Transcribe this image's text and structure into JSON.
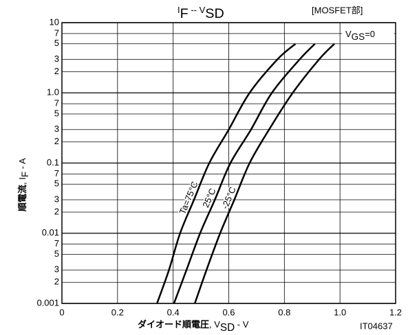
{
  "chart_data": {
    "type": "line",
    "title": [
      {
        "text": "I"
      },
      {
        "text": "F",
        "sub": true
      },
      {
        "text": " -- V"
      },
      {
        "text": "SD",
        "sub": true
      }
    ],
    "tag": "[MOSFET部]",
    "condition": [
      {
        "text": "V"
      },
      {
        "text": "GS",
        "sub": true
      },
      {
        "text": "=0"
      }
    ],
    "xlabel": [
      {
        "text": "ダイオード順電圧",
        "bold": true
      },
      {
        "text": ", V"
      },
      {
        "text": "SD",
        "sub": true
      },
      {
        "text": " - V"
      }
    ],
    "ylabel": [
      {
        "text": "順電流",
        "bold": true
      },
      {
        "text": ", I"
      },
      {
        "text": "F",
        "sub": true
      },
      {
        "text": " - A"
      }
    ],
    "figure_id": "IT04637",
    "xlim": [
      0,
      1.2
    ],
    "xticks": [
      0,
      0.2,
      0.4,
      0.6,
      0.8,
      {
        "value": 1,
        "label": "1.0"
      },
      1.2
    ],
    "ylim": [
      0.001,
      10
    ],
    "ylog": true,
    "yticks": [
      0.001,
      {
        "value": 0.002,
        "label": "2"
      },
      {
        "value": 0.003,
        "label": "3"
      },
      {
        "value": 0.005,
        "label": "5"
      },
      {
        "value": 0.007,
        "label": "7"
      },
      0.01,
      {
        "value": 0.02,
        "label": "2"
      },
      {
        "value": 0.03,
        "label": "3"
      },
      {
        "value": 0.05,
        "label": "5"
      },
      {
        "value": 0.07,
        "label": "7"
      },
      0.1,
      {
        "value": 0.2,
        "label": "2"
      },
      {
        "value": 0.3,
        "label": "3"
      },
      {
        "value": 0.5,
        "label": "5"
      },
      {
        "value": 0.7,
        "label": "7"
      },
      {
        "value": 1,
        "label": "1.0"
      },
      2,
      3,
      5,
      7,
      10
    ],
    "grid": true,
    "series": [
      {
        "name": "Ta=75°C",
        "color": "#000000",
        "x": [
          0.342,
          0.385,
          0.425,
          0.475,
          0.53,
          0.6,
          0.675,
          0.775,
          0.84
        ],
        "values": [
          0.001,
          0.003,
          0.01,
          0.03,
          0.1,
          0.3,
          1,
          3,
          5
        ]
      },
      {
        "name": "25°C",
        "color": "#000000",
        "x": [
          0.403,
          0.448,
          0.497,
          0.55,
          0.606,
          0.68,
          0.755,
          0.855,
          0.91
        ],
        "values": [
          0.001,
          0.003,
          0.01,
          0.03,
          0.1,
          0.3,
          1,
          3,
          5
        ]
      },
      {
        "name": "-25°C",
        "color": "#000000",
        "x": [
          0.478,
          0.52,
          0.569,
          0.62,
          0.675,
          0.745,
          0.83,
          0.925,
          0.98
        ],
        "values": [
          0.001,
          0.003,
          0.01,
          0.03,
          0.1,
          0.3,
          1,
          3,
          5
        ]
      }
    ]
  }
}
